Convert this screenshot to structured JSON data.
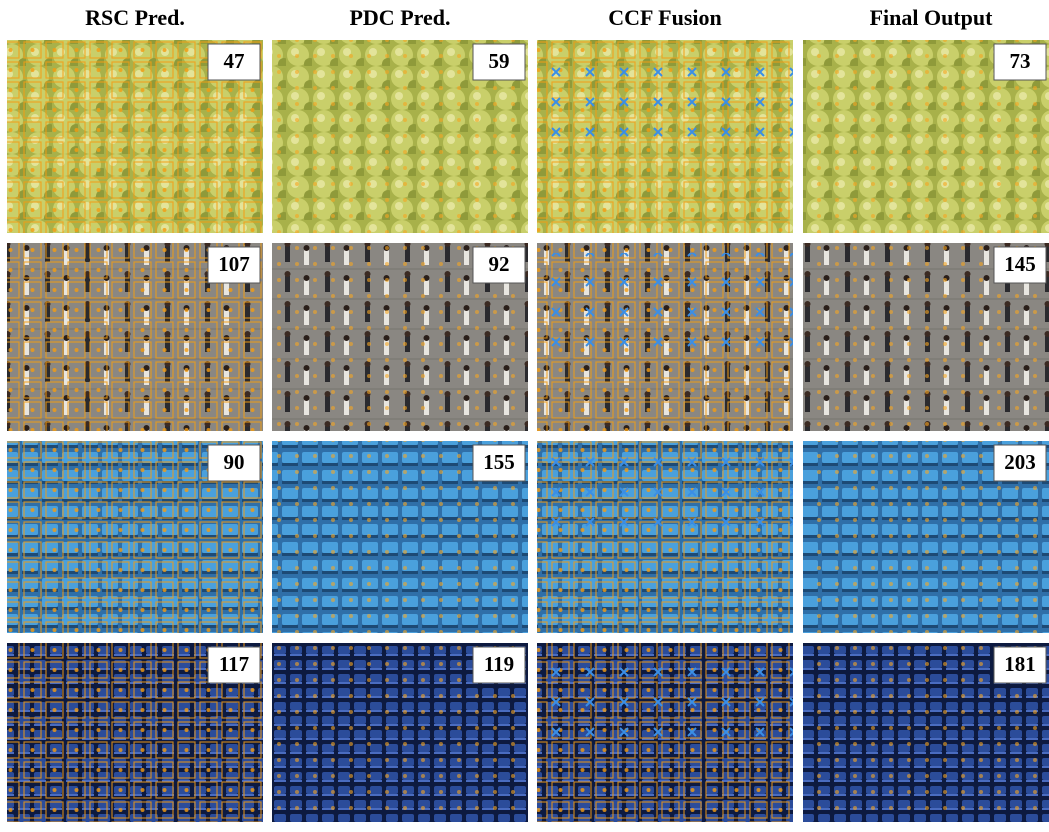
{
  "header": {
    "columns": [
      "RSC Pred.",
      "PDC Pred.",
      "CCF Fusion",
      "Final Output"
    ]
  },
  "rows": [
    {
      "rsc": 47,
      "pdc": 59,
      "final": 73
    },
    {
      "rsc": 107,
      "pdc": 92,
      "final": 145
    },
    {
      "rsc": 90,
      "pdc": 155,
      "final": 203
    },
    {
      "rsc": 117,
      "pdc": 119,
      "final": 181
    }
  ]
}
